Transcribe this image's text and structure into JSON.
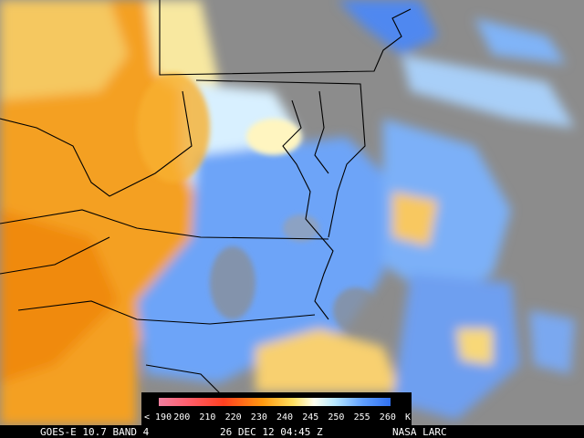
{
  "legend": {
    "labels": [
      "< 190",
      "200",
      "210",
      "220",
      "230",
      "240",
      "245",
      "250",
      "255",
      "260",
      "K"
    ]
  },
  "caption": {
    "satellite": "GOES-E 10.7 BAND 4",
    "time": "26 DEC 12 04:45 Z",
    "source": "NASA LARC"
  }
}
